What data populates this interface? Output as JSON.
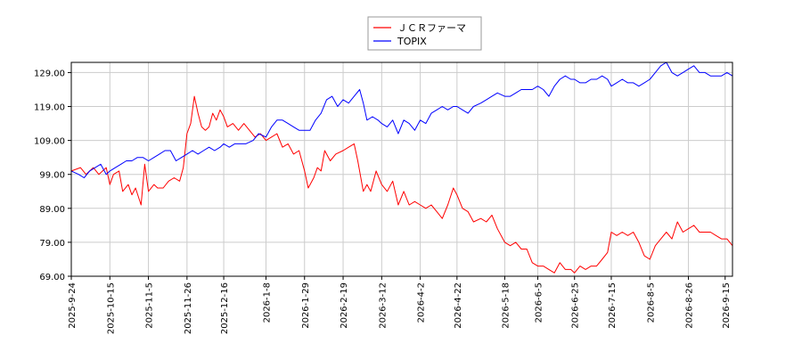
{
  "chart_data": {
    "type": "line",
    "legend": {
      "placement": "top-center",
      "entries": [
        {
          "name": "ＪＣＲファーマ",
          "color": "#ff0000"
        },
        {
          "name": "TOPIX",
          "color": "#0000ff"
        }
      ]
    },
    "grid": true,
    "ylim": [
      69,
      132
    ],
    "yticks": [
      69,
      79,
      89,
      99,
      109,
      119,
      129
    ],
    "ytick_labels": [
      "69.00",
      "79.00",
      "89.00",
      "99.00",
      "109.00",
      "119.00",
      "129.00"
    ],
    "xlim": [
      "2025-09-24",
      "2026-09-19"
    ],
    "xtick_labels": [
      "2025-9-24",
      "2025-10-15",
      "2025-11-5",
      "2025-11-26",
      "2025-12-16",
      "2026-1-8",
      "2026-1-29",
      "2026-2-19",
      "2026-3-12",
      "2026-4-2",
      "2026-4-22",
      "2026-5-18",
      "2026-6-5",
      "2026-6-25",
      "2026-7-15",
      "2026-8-5",
      "2026-8-26",
      "2026-9-15"
    ],
    "series": [
      {
        "name": "ＪＣＲファーマ",
        "color": "#ff0000",
        "points": [
          [
            "2025-09-24",
            100
          ],
          [
            "2025-09-29",
            101
          ],
          [
            "2025-10-02",
            99
          ],
          [
            "2025-10-06",
            101
          ],
          [
            "2025-10-09",
            99
          ],
          [
            "2025-10-13",
            101
          ],
          [
            "2025-10-15",
            96
          ],
          [
            "2025-10-17",
            99
          ],
          [
            "2025-10-20",
            100
          ],
          [
            "2025-10-22",
            94
          ],
          [
            "2025-10-25",
            96
          ],
          [
            "2025-10-27",
            93
          ],
          [
            "2025-10-29",
            95
          ],
          [
            "2025-11-01",
            90
          ],
          [
            "2025-11-03",
            102
          ],
          [
            "2025-11-05",
            94
          ],
          [
            "2025-11-08",
            96
          ],
          [
            "2025-11-10",
            95
          ],
          [
            "2025-11-13",
            95
          ],
          [
            "2025-11-16",
            97
          ],
          [
            "2025-11-19",
            98
          ],
          [
            "2025-11-22",
            97
          ],
          [
            "2025-11-24",
            101
          ],
          [
            "2025-11-26",
            111
          ],
          [
            "2025-11-28",
            114
          ],
          [
            "2025-11-30",
            122
          ],
          [
            "2025-12-02",
            117
          ],
          [
            "2025-12-04",
            113
          ],
          [
            "2025-12-06",
            112
          ],
          [
            "2025-12-08",
            113
          ],
          [
            "2025-12-10",
            117
          ],
          [
            "2025-12-12",
            115
          ],
          [
            "2025-12-14",
            118
          ],
          [
            "2025-12-16",
            116
          ],
          [
            "2025-12-18",
            113
          ],
          [
            "2025-12-21",
            114
          ],
          [
            "2025-12-24",
            112
          ],
          [
            "2025-12-27",
            114
          ],
          [
            "2025-12-30",
            112
          ],
          [
            "2026-01-02",
            110
          ],
          [
            "2026-01-05",
            111
          ],
          [
            "2026-01-08",
            109
          ],
          [
            "2026-01-11",
            110
          ],
          [
            "2026-01-14",
            111
          ],
          [
            "2026-01-17",
            107
          ],
          [
            "2026-01-20",
            108
          ],
          [
            "2026-01-23",
            105
          ],
          [
            "2026-01-26",
            106
          ],
          [
            "2026-01-29",
            100
          ],
          [
            "2026-01-31",
            95
          ],
          [
            "2026-02-03",
            98
          ],
          [
            "2026-02-05",
            101
          ],
          [
            "2026-02-07",
            100
          ],
          [
            "2026-02-09",
            106
          ],
          [
            "2026-02-12",
            103
          ],
          [
            "2026-02-15",
            105
          ],
          [
            "2026-02-19",
            106
          ],
          [
            "2026-02-22",
            107
          ],
          [
            "2026-02-25",
            108
          ],
          [
            "2026-02-27",
            103
          ],
          [
            "2026-03-02",
            94
          ],
          [
            "2026-03-04",
            96
          ],
          [
            "2026-03-06",
            94
          ],
          [
            "2026-03-09",
            100
          ],
          [
            "2026-03-12",
            96
          ],
          [
            "2026-03-15",
            94
          ],
          [
            "2026-03-18",
            97
          ],
          [
            "2026-03-21",
            90
          ],
          [
            "2026-03-24",
            94
          ],
          [
            "2026-03-27",
            90
          ],
          [
            "2026-03-30",
            91
          ],
          [
            "2026-04-02",
            90
          ],
          [
            "2026-04-05",
            89
          ],
          [
            "2026-04-08",
            90
          ],
          [
            "2026-04-11",
            88
          ],
          [
            "2026-04-14",
            86
          ],
          [
            "2026-04-17",
            90
          ],
          [
            "2026-04-20",
            95
          ],
          [
            "2026-04-22",
            93
          ],
          [
            "2026-04-25",
            89
          ],
          [
            "2026-04-28",
            88
          ],
          [
            "2026-05-01",
            85
          ],
          [
            "2026-05-05",
            86
          ],
          [
            "2026-05-08",
            85
          ],
          [
            "2026-05-11",
            87
          ],
          [
            "2026-05-14",
            83
          ],
          [
            "2026-05-18",
            79
          ],
          [
            "2026-05-21",
            78
          ],
          [
            "2026-05-24",
            79
          ],
          [
            "2026-05-27",
            77
          ],
          [
            "2026-05-30",
            77
          ],
          [
            "2026-06-02",
            73
          ],
          [
            "2026-06-05",
            72
          ],
          [
            "2026-06-08",
            72
          ],
          [
            "2026-06-11",
            71
          ],
          [
            "2026-06-14",
            70
          ],
          [
            "2026-06-17",
            73
          ],
          [
            "2026-06-20",
            71
          ],
          [
            "2026-06-23",
            71
          ],
          [
            "2026-06-25",
            70
          ],
          [
            "2026-06-28",
            72
          ],
          [
            "2026-07-01",
            71
          ],
          [
            "2026-07-04",
            72
          ],
          [
            "2026-07-07",
            72
          ],
          [
            "2026-07-10",
            74
          ],
          [
            "2026-07-13",
            76
          ],
          [
            "2026-07-15",
            82
          ],
          [
            "2026-07-18",
            81
          ],
          [
            "2026-07-21",
            82
          ],
          [
            "2026-07-24",
            81
          ],
          [
            "2026-07-27",
            82
          ],
          [
            "2026-07-30",
            79
          ],
          [
            "2026-08-02",
            75
          ],
          [
            "2026-08-05",
            74
          ],
          [
            "2026-08-08",
            78
          ],
          [
            "2026-08-11",
            80
          ],
          [
            "2026-08-14",
            82
          ],
          [
            "2026-08-17",
            80
          ],
          [
            "2026-08-20",
            85
          ],
          [
            "2026-08-23",
            82
          ],
          [
            "2026-08-26",
            83
          ],
          [
            "2026-08-29",
            84
          ],
          [
            "2026-09-01",
            82
          ],
          [
            "2026-09-04",
            82
          ],
          [
            "2026-09-07",
            82
          ],
          [
            "2026-09-10",
            81
          ],
          [
            "2026-09-13",
            80
          ],
          [
            "2026-09-16",
            80
          ],
          [
            "2026-09-19",
            78
          ]
        ]
      },
      {
        "name": "TOPIX",
        "color": "#0000ff",
        "points": [
          [
            "2025-09-24",
            100
          ],
          [
            "2025-09-28",
            99
          ],
          [
            "2025-10-01",
            98
          ],
          [
            "2025-10-04",
            100
          ],
          [
            "2025-10-07",
            101
          ],
          [
            "2025-10-10",
            102
          ],
          [
            "2025-10-13",
            99
          ],
          [
            "2025-10-15",
            100
          ],
          [
            "2025-10-18",
            101
          ],
          [
            "2025-10-21",
            102
          ],
          [
            "2025-10-24",
            103
          ],
          [
            "2025-10-27",
            103
          ],
          [
            "2025-10-30",
            104
          ],
          [
            "2025-11-02",
            104
          ],
          [
            "2025-11-05",
            103
          ],
          [
            "2025-11-08",
            104
          ],
          [
            "2025-11-11",
            105
          ],
          [
            "2025-11-14",
            106
          ],
          [
            "2025-11-17",
            106
          ],
          [
            "2025-11-20",
            103
          ],
          [
            "2025-11-23",
            104
          ],
          [
            "2025-11-26",
            105
          ],
          [
            "2025-11-29",
            106
          ],
          [
            "2025-12-02",
            105
          ],
          [
            "2025-12-05",
            106
          ],
          [
            "2025-12-08",
            107
          ],
          [
            "2025-12-11",
            106
          ],
          [
            "2025-12-14",
            107
          ],
          [
            "2025-12-16",
            108
          ],
          [
            "2025-12-19",
            107
          ],
          [
            "2025-12-22",
            108
          ],
          [
            "2025-12-25",
            108
          ],
          [
            "2025-12-28",
            108
          ],
          [
            "2026-01-01",
            109
          ],
          [
            "2026-01-04",
            111
          ],
          [
            "2026-01-08",
            110
          ],
          [
            "2026-01-11",
            113
          ],
          [
            "2026-01-14",
            115
          ],
          [
            "2026-01-17",
            115
          ],
          [
            "2026-01-20",
            114
          ],
          [
            "2026-01-23",
            113
          ],
          [
            "2026-01-26",
            112
          ],
          [
            "2026-01-29",
            112
          ],
          [
            "2026-02-01",
            112
          ],
          [
            "2026-02-04",
            115
          ],
          [
            "2026-02-07",
            117
          ],
          [
            "2026-02-10",
            121
          ],
          [
            "2026-02-13",
            122
          ],
          [
            "2026-02-16",
            119
          ],
          [
            "2026-02-19",
            121
          ],
          [
            "2026-02-22",
            120
          ],
          [
            "2026-02-25",
            122
          ],
          [
            "2026-02-28",
            124
          ],
          [
            "2026-03-02",
            120
          ],
          [
            "2026-03-04",
            115
          ],
          [
            "2026-03-07",
            116
          ],
          [
            "2026-03-10",
            115
          ],
          [
            "2026-03-12",
            114
          ],
          [
            "2026-03-15",
            113
          ],
          [
            "2026-03-18",
            115
          ],
          [
            "2026-03-21",
            111
          ],
          [
            "2026-03-24",
            115
          ],
          [
            "2026-03-27",
            114
          ],
          [
            "2026-03-30",
            112
          ],
          [
            "2026-04-02",
            115
          ],
          [
            "2026-04-05",
            114
          ],
          [
            "2026-04-08",
            117
          ],
          [
            "2026-04-11",
            118
          ],
          [
            "2026-04-14",
            119
          ],
          [
            "2026-04-17",
            118
          ],
          [
            "2026-04-20",
            119
          ],
          [
            "2026-04-22",
            119
          ],
          [
            "2026-04-25",
            118
          ],
          [
            "2026-04-28",
            117
          ],
          [
            "2026-05-01",
            119
          ],
          [
            "2026-05-05",
            120
          ],
          [
            "2026-05-08",
            121
          ],
          [
            "2026-05-11",
            122
          ],
          [
            "2026-05-14",
            123
          ],
          [
            "2026-05-18",
            122
          ],
          [
            "2026-05-21",
            122
          ],
          [
            "2026-05-24",
            123
          ],
          [
            "2026-05-27",
            124
          ],
          [
            "2026-05-30",
            124
          ],
          [
            "2026-06-02",
            124
          ],
          [
            "2026-06-05",
            125
          ],
          [
            "2026-06-08",
            124
          ],
          [
            "2026-06-11",
            122
          ],
          [
            "2026-06-14",
            125
          ],
          [
            "2026-06-17",
            127
          ],
          [
            "2026-06-20",
            128
          ],
          [
            "2026-06-23",
            127
          ],
          [
            "2026-06-25",
            127
          ],
          [
            "2026-06-28",
            126
          ],
          [
            "2026-07-01",
            126
          ],
          [
            "2026-07-04",
            127
          ],
          [
            "2026-07-07",
            127
          ],
          [
            "2026-07-10",
            128
          ],
          [
            "2026-07-13",
            127
          ],
          [
            "2026-07-15",
            125
          ],
          [
            "2026-07-18",
            126
          ],
          [
            "2026-07-21",
            127
          ],
          [
            "2026-07-24",
            126
          ],
          [
            "2026-07-27",
            126
          ],
          [
            "2026-07-30",
            125
          ],
          [
            "2026-08-02",
            126
          ],
          [
            "2026-08-05",
            127
          ],
          [
            "2026-08-08",
            129
          ],
          [
            "2026-08-11",
            131
          ],
          [
            "2026-08-14",
            132
          ],
          [
            "2026-08-17",
            129
          ],
          [
            "2026-08-20",
            128
          ],
          [
            "2026-08-23",
            129
          ],
          [
            "2026-08-26",
            130
          ],
          [
            "2026-08-29",
            131
          ],
          [
            "2026-09-01",
            129
          ],
          [
            "2026-09-04",
            129
          ],
          [
            "2026-09-07",
            128
          ],
          [
            "2026-09-10",
            128
          ],
          [
            "2026-09-13",
            128
          ],
          [
            "2026-09-16",
            129
          ],
          [
            "2026-09-19",
            128
          ]
        ]
      }
    ]
  }
}
